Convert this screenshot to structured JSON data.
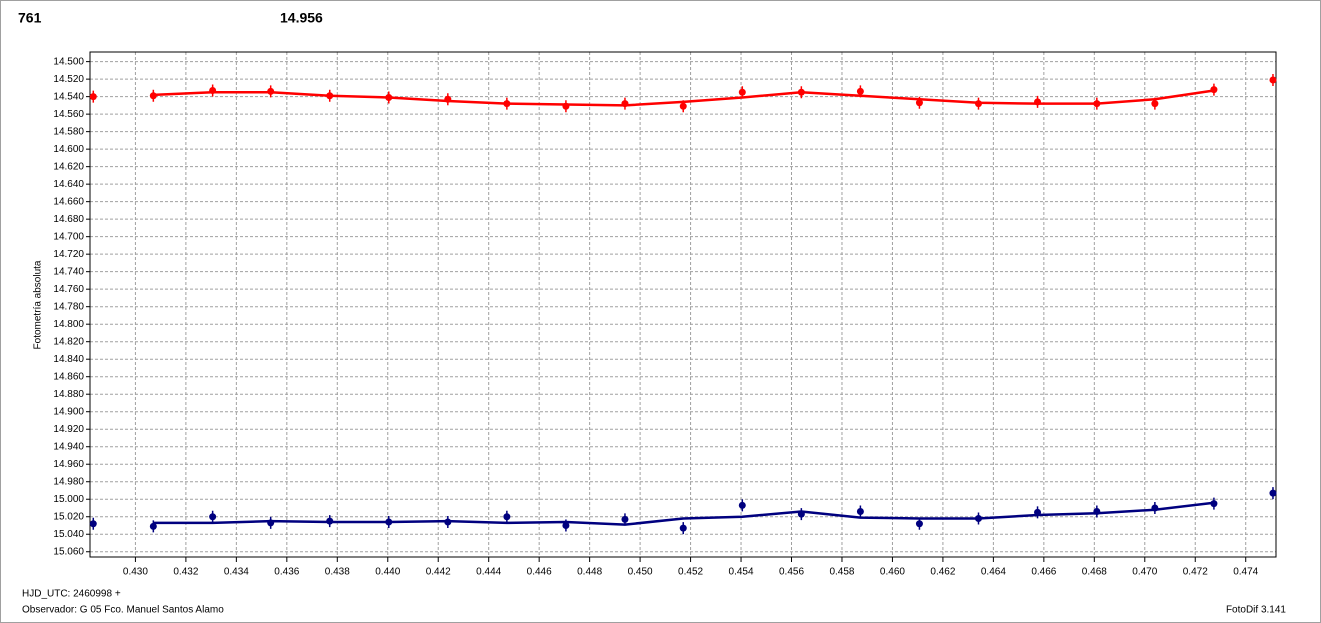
{
  "chart_data": {
    "type": "scatter",
    "header_left": "761",
    "header_left_color": "#ff0000",
    "header_right": "14.956",
    "header_right_color": "#00007f",
    "y_label": "Fotometría absoluta",
    "x_label": "HJD_UTC: 2460998 +",
    "observer": "Observador: G 05  Fco. Manuel Santos Alamo",
    "software": "FotoDif 3.141",
    "grid": true,
    "y_inverted": true,
    "xlim": [
      0.4282,
      0.4752
    ],
    "ylim": [
      14.489,
      15.066
    ],
    "xticks": [
      {
        "value": 0.43,
        "label": "0.430"
      },
      {
        "value": 0.432,
        "label": "0.432"
      },
      {
        "value": 0.434,
        "label": "0.434"
      },
      {
        "value": 0.436,
        "label": "0.436"
      },
      {
        "value": 0.438,
        "label": "0.438"
      },
      {
        "value": 0.44,
        "label": "0.440"
      },
      {
        "value": 0.442,
        "label": "0.442"
      },
      {
        "value": 0.444,
        "label": "0.444"
      },
      {
        "value": 0.446,
        "label": "0.446"
      },
      {
        "value": 0.448,
        "label": "0.448"
      },
      {
        "value": 0.45,
        "label": "0.450"
      },
      {
        "value": 0.452,
        "label": "0.452"
      },
      {
        "value": 0.454,
        "label": "0.454"
      },
      {
        "value": 0.456,
        "label": "0.456"
      },
      {
        "value": 0.458,
        "label": "0.458"
      },
      {
        "value": 0.46,
        "label": "0.460"
      },
      {
        "value": 0.462,
        "label": "0.462"
      },
      {
        "value": 0.464,
        "label": "0.464"
      },
      {
        "value": 0.466,
        "label": "0.466"
      },
      {
        "value": 0.468,
        "label": "0.468"
      },
      {
        "value": 0.47,
        "label": "0.470"
      },
      {
        "value": 0.472,
        "label": "0.472"
      },
      {
        "value": 0.474,
        "label": "0.474"
      }
    ],
    "yticks": [
      {
        "value": 14.5,
        "label": "14.500"
      },
      {
        "value": 14.52,
        "label": "14.520"
      },
      {
        "value": 14.54,
        "label": "14.540"
      },
      {
        "value": 14.56,
        "label": "14.560"
      },
      {
        "value": 14.58,
        "label": "14.580"
      },
      {
        "value": 14.6,
        "label": "14.600"
      },
      {
        "value": 14.62,
        "label": "14.620"
      },
      {
        "value": 14.64,
        "label": "14.640"
      },
      {
        "value": 14.66,
        "label": "14.660"
      },
      {
        "value": 14.68,
        "label": "14.680"
      },
      {
        "value": 14.7,
        "label": "14.700"
      },
      {
        "value": 14.72,
        "label": "14.720"
      },
      {
        "value": 14.74,
        "label": "14.740"
      },
      {
        "value": 14.76,
        "label": "14.760"
      },
      {
        "value": 14.78,
        "label": "14.780"
      },
      {
        "value": 14.8,
        "label": "14.800"
      },
      {
        "value": 14.82,
        "label": "14.820"
      },
      {
        "value": 14.84,
        "label": "14.840"
      },
      {
        "value": 14.86,
        "label": "14.860"
      },
      {
        "value": 14.88,
        "label": "14.880"
      },
      {
        "value": 14.9,
        "label": "14.900"
      },
      {
        "value": 14.92,
        "label": "14.920"
      },
      {
        "value": 14.94,
        "label": "14.940"
      },
      {
        "value": 14.96,
        "label": "14.960"
      },
      {
        "value": 14.98,
        "label": "14.980"
      },
      {
        "value": 15.0,
        "label": "15.000"
      },
      {
        "value": 15.02,
        "label": "15.020"
      },
      {
        "value": 15.04,
        "label": "15.040"
      },
      {
        "value": 15.06,
        "label": "15.060"
      }
    ],
    "x": [
      0.42833,
      0.43071,
      0.43306,
      0.43536,
      0.4377,
      0.44004,
      0.44238,
      0.44472,
      0.44706,
      0.4494,
      0.45171,
      0.45405,
      0.45639,
      0.45873,
      0.46107,
      0.46341,
      0.46575,
      0.4681,
      0.4704,
      0.47274,
      0.47508
    ],
    "series": [
      {
        "color": "#ff0000",
        "values": [
          14.54,
          14.539,
          14.533,
          14.534,
          14.539,
          14.541,
          14.543,
          14.548,
          14.551,
          14.548,
          14.551,
          14.535,
          14.535,
          14.534,
          14.547,
          14.548,
          14.546,
          14.548,
          14.548,
          14.532,
          14.521
        ],
        "fit": [
          null,
          14.538,
          14.535,
          14.535,
          14.539,
          14.541,
          14.545,
          14.548,
          14.549,
          14.55,
          14.546,
          14.541,
          14.535,
          14.539,
          14.543,
          14.547,
          14.548,
          14.548,
          14.543,
          14.533,
          null
        ]
      },
      {
        "color": "#00007f",
        "values": [
          15.028,
          15.031,
          15.02,
          15.027,
          15.025,
          15.026,
          15.026,
          15.02,
          15.03,
          15.023,
          15.033,
          15.007,
          15.017,
          15.014,
          15.028,
          15.022,
          15.015,
          15.014,
          15.01,
          15.005,
          14.993
        ],
        "fit": [
          null,
          15.027,
          15.027,
          15.025,
          15.026,
          15.026,
          15.025,
          15.027,
          15.026,
          15.029,
          15.022,
          15.02,
          15.014,
          15.021,
          15.022,
          15.022,
          15.018,
          15.016,
          15.012,
          15.004,
          null
        ]
      }
    ]
  }
}
